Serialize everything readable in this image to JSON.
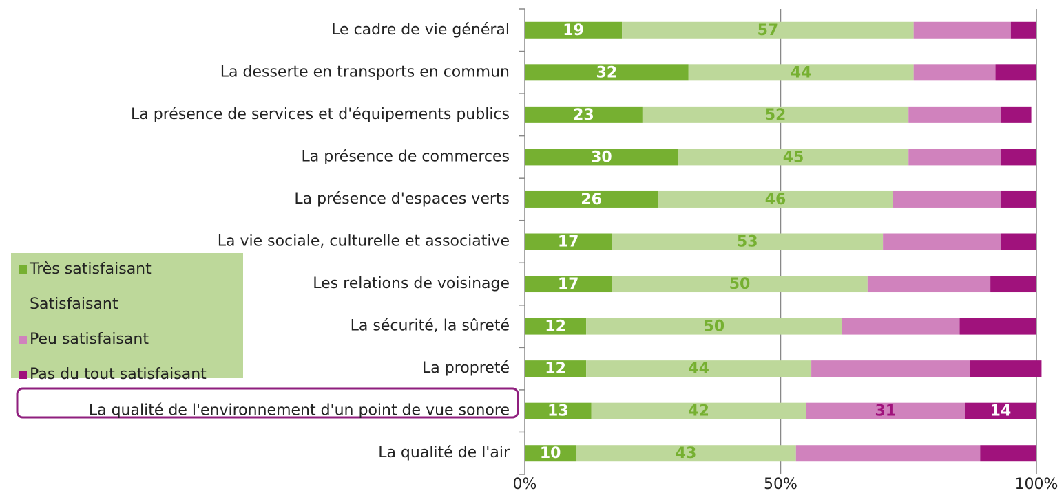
{
  "chart_data": {
    "type": "stacked_bar_horizontal",
    "categories": [
      "Le cadre de vie général",
      "La desserte en transports en commun",
      "La présence de services et d'équipements publics",
      "La présence de commerces",
      "La présence d'espaces verts",
      "La vie sociale, culturelle et associative",
      "Les relations de voisinage",
      "La sécurité, la sûreté",
      "La propreté",
      "La qualité de l'environnement d'un point de vue sonore",
      "La qualité de l'air"
    ],
    "series": [
      {
        "name": "Très satisfaisant",
        "color": "#76b031",
        "label_color": "#ffffff",
        "values": [
          19,
          32,
          23,
          30,
          26,
          17,
          17,
          12,
          12,
          13,
          10
        ],
        "value_labels": [
          19,
          32,
          23,
          30,
          26,
          17,
          17,
          12,
          12,
          13,
          10
        ]
      },
      {
        "name": "Satisfaisant",
        "color": "#bdd89a",
        "label_color": "#76b031",
        "values": [
          57,
          44,
          52,
          45,
          46,
          53,
          50,
          50,
          44,
          42,
          43
        ],
        "value_labels": [
          57,
          44,
          52,
          45,
          46,
          53,
          50,
          50,
          44,
          42,
          43
        ]
      },
      {
        "name": "Peu satisfaisant",
        "color": "#d082bd",
        "label_color": "#a0127c",
        "values": [
          19,
          16,
          18,
          18,
          21,
          23,
          24,
          23,
          31,
          31,
          36
        ],
        "value_labels": [
          null,
          null,
          null,
          null,
          null,
          null,
          null,
          null,
          null,
          31,
          null
        ]
      },
      {
        "name": "Pas du tout satisfaisant",
        "color": "#a0127c",
        "label_color": "#ffffff",
        "values": [
          5,
          8,
          6,
          7,
          7,
          7,
          9,
          15,
          14,
          14,
          11
        ],
        "value_labels": [
          null,
          null,
          null,
          null,
          null,
          null,
          null,
          null,
          null,
          14,
          null
        ]
      }
    ],
    "xlim": [
      0,
      100
    ],
    "xticks": [
      {
        "value": 0,
        "label": "0%"
      },
      {
        "value": 50,
        "label": "50%"
      },
      {
        "value": 100,
        "label": "100%"
      }
    ],
    "grid": true
  }
}
